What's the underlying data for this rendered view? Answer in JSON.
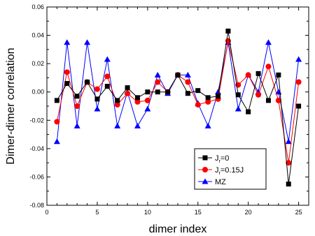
{
  "chart_data": {
    "type": "line",
    "xlabel": "dimer index",
    "ylabel": "Dimer-dimer correlation",
    "xlim": [
      0,
      26
    ],
    "ylim": [
      -0.08,
      0.06
    ],
    "xticks": [
      0,
      5,
      10,
      15,
      20,
      25
    ],
    "yticks": [
      -0.08,
      -0.06,
      -0.04,
      -0.02,
      0.0,
      0.02,
      0.04,
      0.06
    ],
    "ytick_labels": [
      "-0.08",
      "-0.06",
      "-0.04",
      "-0.02",
      "0.00",
      "0.02",
      "0.04",
      "0.06"
    ],
    "grid": false,
    "legend_position": "bottom-right",
    "x": [
      1,
      2,
      3,
      4,
      5,
      6,
      7,
      8,
      9,
      10,
      11,
      12,
      13,
      14,
      15,
      16,
      17,
      18,
      19,
      20,
      21,
      22,
      23,
      24,
      25
    ],
    "series": [
      {
        "name": "J_r=0",
        "legend_main": "J",
        "legend_sub": "r",
        "legend_rest": "=0",
        "color": "#000000",
        "marker": "square",
        "values": [
          -0.006,
          0.006,
          -0.003,
          0.007,
          -0.005,
          0.004,
          -0.006,
          0.003,
          -0.004,
          0.0,
          0.0,
          0.0,
          0.012,
          -0.001,
          0.001,
          -0.004,
          -0.003,
          0.043,
          -0.002,
          -0.014,
          0.013,
          -0.006,
          0.012,
          -0.065,
          -0.01
        ]
      },
      {
        "name": "J_r=0.15J",
        "legend_main": "J",
        "legend_sub": "r",
        "legend_rest": "=0.15J",
        "color": "#ff0000",
        "marker": "circle",
        "values": [
          -0.021,
          0.014,
          -0.01,
          0.007,
          0.002,
          0.011,
          -0.009,
          -0.001,
          -0.007,
          -0.006,
          0.007,
          0.0,
          0.012,
          0.007,
          -0.009,
          -0.007,
          -0.005,
          0.036,
          0.005,
          0.012,
          -0.002,
          0.018,
          -0.006,
          -0.05,
          0.007
        ]
      },
      {
        "name": "MZ",
        "legend_main": "MZ",
        "legend_sub": "",
        "legend_rest": "",
        "color": "#0000ff",
        "marker": "triangle",
        "values": [
          -0.035,
          0.035,
          -0.024,
          0.035,
          -0.012,
          0.023,
          -0.024,
          0.0,
          -0.024,
          -0.012,
          0.012,
          -0.001,
          0.012,
          0.012,
          -0.008,
          -0.024,
          0.0,
          0.035,
          -0.012,
          0.012,
          0.0,
          0.035,
          0.0,
          -0.035,
          0.023
        ]
      }
    ]
  }
}
